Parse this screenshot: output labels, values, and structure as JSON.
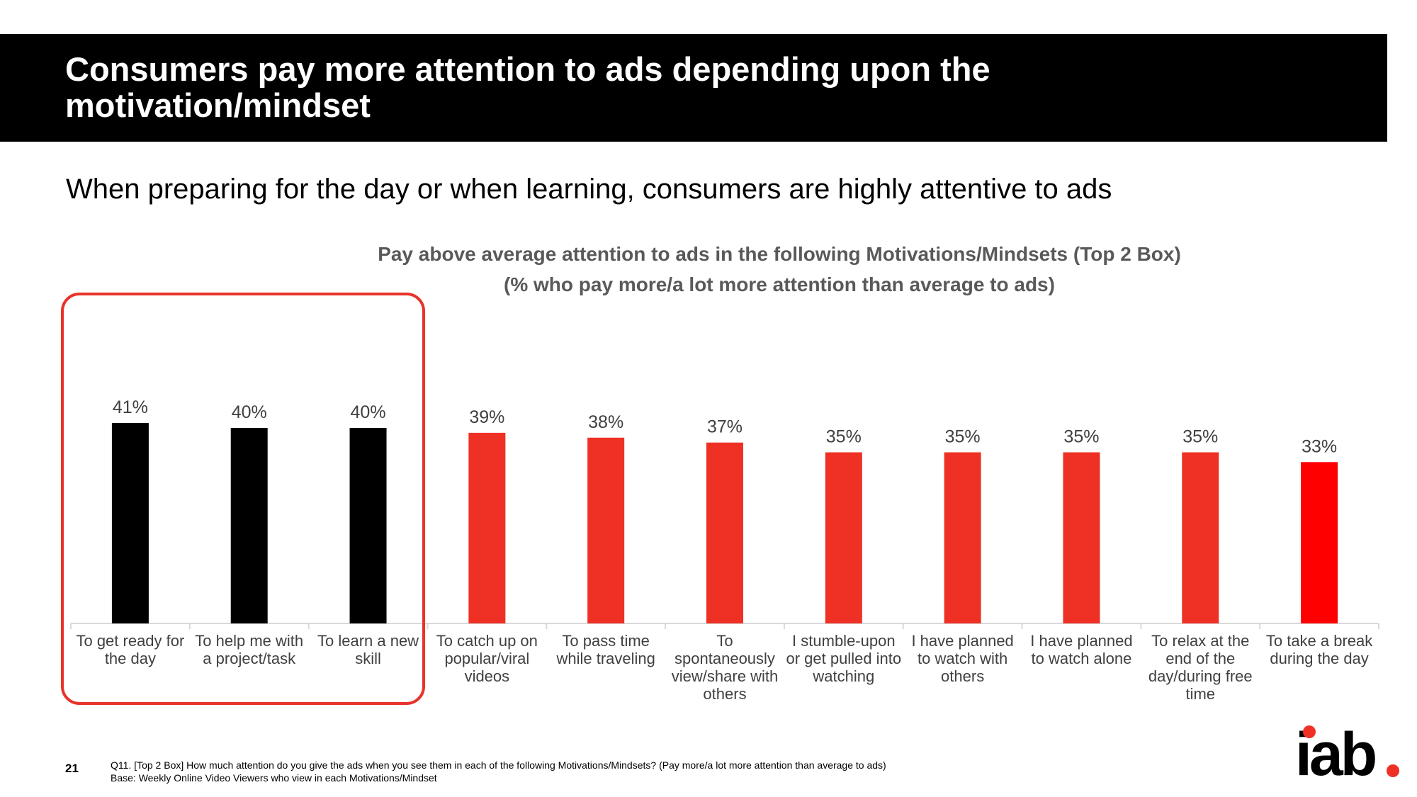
{
  "header": {
    "title": "Consumers pay more attention to ads depending upon the motivation/mindset"
  },
  "subtitle": "When preparing for the day or when learning, consumers are highly attentive to ads",
  "chart_data": {
    "type": "bar",
    "title_line1": "Pay above average attention to ads in the following Motivations/Mindsets (Top 2 Box)",
    "title_line2": "(% who pay more/a lot more attention than average to ads)",
    "xlabel": "",
    "ylabel": "",
    "ylim": [
      0,
      50
    ],
    "grid": false,
    "legend": "none",
    "value_suffix": "%",
    "categories": [
      [
        "To get ready for",
        "the day"
      ],
      [
        "To help me with",
        "a project/task"
      ],
      [
        "To learn a new",
        "skill"
      ],
      [
        "To catch up on",
        "popular/viral",
        "videos"
      ],
      [
        "To pass time",
        "while traveling"
      ],
      [
        "To",
        "spontaneously",
        "view/share with",
        "others"
      ],
      [
        "I stumble-upon",
        "or get pulled into",
        "watching"
      ],
      [
        "I have planned",
        "to watch with",
        "others"
      ],
      [
        "I have planned",
        "to watch alone"
      ],
      [
        "To relax at the",
        "end of the",
        "day/during free",
        "time"
      ],
      [
        "To take a break",
        "during the day"
      ]
    ],
    "values": [
      41,
      40,
      40,
      39,
      38,
      37,
      35,
      35,
      35,
      35,
      33
    ],
    "labels": [
      "41%",
      "40%",
      "40%",
      "39%",
      "38%",
      "37%",
      "35%",
      "35%",
      "35%",
      "35%",
      "33%"
    ],
    "highlighted_categories": 3
  },
  "colors": {
    "highlight_bar": "#000000",
    "bar": "#ee3124",
    "last_bar": "#ff0000",
    "highlight_box": "#e8332b",
    "axis": "#d9d9d9",
    "label_text": "#404040",
    "chart_title": "#595959",
    "logo_dot": "#ee3124"
  },
  "footer": {
    "page_number": "21",
    "question": "Q11. [Top 2 Box] How much attention do you give the ads when you see them in each of the following Motivations/Mindsets? (Pay more/a lot more attention than average to ads)",
    "base": "Base: Weekly Online Video Viewers who view in each Motivations/Mindset"
  },
  "logo": {
    "text": "iab"
  }
}
